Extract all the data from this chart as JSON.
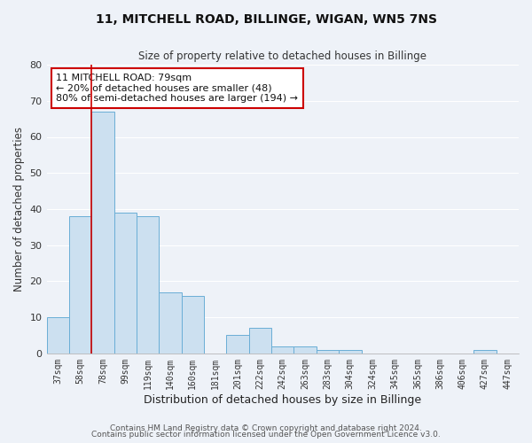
{
  "title": "11, MITCHELL ROAD, BILLINGE, WIGAN, WN5 7NS",
  "subtitle": "Size of property relative to detached houses in Billinge",
  "xlabel": "Distribution of detached houses by size in Billinge",
  "ylabel": "Number of detached properties",
  "categories": [
    "37sqm",
    "58sqm",
    "78sqm",
    "99sqm",
    "119sqm",
    "140sqm",
    "160sqm",
    "181sqm",
    "201sqm",
    "222sqm",
    "242sqm",
    "263sqm",
    "283sqm",
    "304sqm",
    "324sqm",
    "345sqm",
    "365sqm",
    "386sqm",
    "406sqm",
    "427sqm",
    "447sqm"
  ],
  "values": [
    10,
    38,
    67,
    39,
    38,
    17,
    16,
    0,
    5,
    7,
    2,
    2,
    1,
    1,
    0,
    0,
    0,
    0,
    0,
    1,
    0
  ],
  "bar_color": "#cce0f0",
  "bar_edge_color": "#6aaed6",
  "highlight_line_index": 2,
  "highlight_color": "#cc0000",
  "annotation_text": "11 MITCHELL ROAD: 79sqm\n← 20% of detached houses are smaller (48)\n80% of semi-detached houses are larger (194) →",
  "annotation_box_color": "#cc0000",
  "ylim": [
    0,
    80
  ],
  "yticks": [
    0,
    10,
    20,
    30,
    40,
    50,
    60,
    70,
    80
  ],
  "background_color": "#eef2f8",
  "grid_color": "#ffffff",
  "footer_line1": "Contains HM Land Registry data © Crown copyright and database right 2024.",
  "footer_line2": "Contains public sector information licensed under the Open Government Licence v3.0."
}
